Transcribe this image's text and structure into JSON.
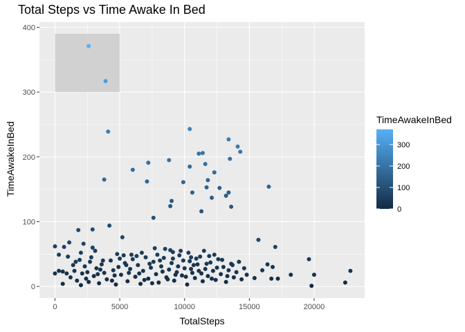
{
  "chart_data": {
    "type": "scatter",
    "title": "Total Steps vs Time Awake In Bed",
    "xlabel": "TotalSteps",
    "ylabel": "TimeAwakeInBed",
    "xlim": [
      -1200,
      23900
    ],
    "ylim": [
      -18,
      408
    ],
    "x_ticks": [
      0,
      5000,
      10000,
      15000,
      20000
    ],
    "x_tick_labels": [
      "0",
      "5000",
      "10000",
      "15000",
      "20000"
    ],
    "y_ticks": [
      0,
      100,
      200,
      300,
      400
    ],
    "y_tick_labels": [
      "0",
      "100",
      "200",
      "300",
      "400"
    ],
    "grid": true,
    "legend": {
      "title": "TimeAwakeInBed",
      "placement": "right",
      "type": "colorbar",
      "range": [
        0,
        371
      ],
      "ticks": [
        0,
        100,
        200,
        300
      ],
      "tick_labels": [
        "0",
        "100",
        "200",
        "300"
      ],
      "low_color": "#132B43",
      "high_color": "#56B1F7"
    },
    "highlight_region": {
      "x": [
        0,
        5000
      ],
      "y": [
        300,
        390
      ],
      "color": "#cccccc"
    },
    "series": [
      {
        "points": [
          [
            2600,
            371
          ],
          [
            3900,
            317
          ],
          [
            4100,
            239
          ],
          [
            10400,
            243
          ],
          [
            13400,
            227
          ],
          [
            14100,
            216
          ],
          [
            14300,
            208
          ],
          [
            11100,
            205
          ],
          [
            11400,
            206
          ],
          [
            13500,
            197
          ],
          [
            8800,
            195
          ],
          [
            7200,
            191
          ],
          [
            11600,
            189
          ],
          [
            10400,
            185
          ],
          [
            6000,
            180
          ],
          [
            12300,
            176
          ],
          [
            3800,
            165
          ],
          [
            7100,
            162
          ],
          [
            9900,
            161
          ],
          [
            11800,
            164
          ],
          [
            16500,
            154
          ],
          [
            11700,
            153
          ],
          [
            12700,
            152
          ],
          [
            10600,
            145
          ],
          [
            13400,
            145
          ],
          [
            13200,
            140
          ],
          [
            12100,
            137
          ],
          [
            9000,
            132
          ],
          [
            8900,
            124
          ],
          [
            13600,
            123
          ],
          [
            11300,
            116
          ],
          [
            7600,
            106
          ],
          [
            1800,
            87
          ],
          [
            2900,
            88
          ],
          [
            4200,
            94
          ],
          [
            700,
            61
          ],
          [
            1100,
            68
          ],
          [
            2200,
            66
          ],
          [
            2900,
            60
          ],
          [
            5200,
            76
          ],
          [
            15700,
            72
          ],
          [
            17000,
            61
          ],
          [
            19600,
            42
          ],
          [
            22800,
            24
          ],
          [
            22400,
            6
          ],
          [
            20000,
            18
          ],
          [
            19800,
            1
          ],
          [
            18200,
            18
          ],
          [
            17200,
            12
          ],
          [
            16700,
            12
          ],
          [
            16400,
            34
          ],
          [
            16800,
            30
          ],
          [
            16000,
            25
          ],
          [
            15400,
            13
          ],
          [
            14800,
            18
          ],
          [
            5300,
            48
          ],
          [
            8500,
            58
          ],
          [
            0,
            62
          ],
          [
            0,
            20
          ],
          [
            300,
            24
          ],
          [
            600,
            23
          ],
          [
            900,
            20
          ],
          [
            1200,
            14
          ],
          [
            1500,
            24
          ],
          [
            1700,
            9
          ],
          [
            2000,
            2
          ],
          [
            2300,
            31
          ],
          [
            2500,
            22
          ],
          [
            2700,
            38
          ],
          [
            3000,
            16
          ],
          [
            3200,
            28
          ],
          [
            3400,
            5
          ],
          [
            3600,
            34
          ],
          [
            3800,
            21
          ],
          [
            4000,
            11
          ],
          [
            4300,
            40
          ],
          [
            4500,
            25
          ],
          [
            4700,
            3
          ],
          [
            4900,
            30
          ],
          [
            5100,
            18
          ],
          [
            5400,
            36
          ],
          [
            5600,
            8
          ],
          [
            5800,
            27
          ],
          [
            6000,
            42
          ],
          [
            6200,
            15
          ],
          [
            6400,
            33
          ],
          [
            6600,
            4
          ],
          [
            6800,
            24
          ],
          [
            7000,
            45
          ],
          [
            7200,
            12
          ],
          [
            7400,
            29
          ],
          [
            7600,
            38
          ],
          [
            7800,
            19
          ],
          [
            8000,
            6
          ],
          [
            8200,
            31
          ],
          [
            8400,
            44
          ],
          [
            8600,
            14
          ],
          [
            8800,
            26
          ],
          [
            9000,
            36
          ],
          [
            9200,
            9
          ],
          [
            9400,
            22
          ],
          [
            9600,
            48
          ],
          [
            9800,
            17
          ],
          [
            10000,
            28
          ],
          [
            10200,
            3
          ],
          [
            10400,
            39
          ],
          [
            10600,
            21
          ],
          [
            10800,
            13
          ],
          [
            11000,
            34
          ],
          [
            11200,
            46
          ],
          [
            11400,
            8
          ],
          [
            11600,
            27
          ],
          [
            11800,
            16
          ],
          [
            12000,
            37
          ],
          [
            12200,
            24
          ],
          [
            12400,
            10
          ],
          [
            12600,
            42
          ],
          [
            12800,
            19
          ],
          [
            13000,
            30
          ],
          [
            13200,
            7
          ],
          [
            13400,
            25
          ],
          [
            13600,
            35
          ],
          [
            13800,
            14
          ],
          [
            14000,
            22
          ],
          [
            14200,
            38
          ],
          [
            14400,
            11
          ],
          [
            14600,
            28
          ],
          [
            1000,
            46
          ],
          [
            1400,
            33
          ],
          [
            1900,
            41
          ],
          [
            2400,
            12
          ],
          [
            2800,
            45
          ],
          [
            3300,
            19
          ],
          [
            3700,
            40
          ],
          [
            4400,
            9
          ],
          [
            5000,
            43
          ],
          [
            5700,
            21
          ],
          [
            6300,
            47
          ],
          [
            6900,
            10
          ],
          [
            7300,
            35
          ],
          [
            7900,
            49
          ],
          [
            8300,
            23
          ],
          [
            8700,
            11
          ],
          [
            9100,
            43
          ],
          [
            9500,
            31
          ],
          [
            9900,
            40
          ],
          [
            10100,
            15
          ],
          [
            10500,
            27
          ],
          [
            10900,
            43
          ],
          [
            11300,
            20
          ],
          [
            11700,
            35
          ],
          [
            12100,
            12
          ],
          [
            12500,
            29
          ],
          [
            12900,
            41
          ],
          [
            13300,
            16
          ],
          [
            13700,
            33
          ],
          [
            600,
            4
          ],
          [
            1600,
            38
          ],
          [
            2100,
            20
          ],
          [
            2600,
            7
          ],
          [
            3500,
            26
          ],
          [
            4600,
            17
          ],
          [
            5500,
            33
          ],
          [
            6500,
            20
          ],
          [
            7500,
            5
          ],
          [
            8100,
            40
          ],
          [
            9300,
            18
          ],
          [
            10300,
            52
          ],
          [
            10700,
            33
          ],
          [
            11100,
            24
          ],
          [
            11500,
            55
          ],
          [
            12300,
            49
          ],
          [
            9700,
            55
          ],
          [
            9100,
            53
          ],
          [
            6700,
            52
          ],
          [
            7700,
            59
          ],
          [
            8900,
            56
          ],
          [
            10500,
            45
          ],
          [
            11900,
            47
          ],
          [
            2000,
            52
          ],
          [
            3100,
            55
          ],
          [
            4800,
            50
          ],
          [
            5900,
            49
          ],
          [
            300,
            49
          ]
        ]
      }
    ]
  }
}
